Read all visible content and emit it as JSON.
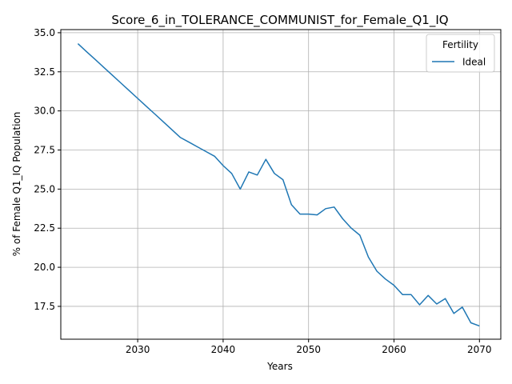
{
  "chart_data": {
    "type": "line",
    "title": "Score_6_in_TOLERANCE_COMMUNIST_for_Female_Q1_IQ",
    "xlabel": "Years",
    "ylabel": "% of Female Q1_IQ Population",
    "xlim": [
      2021,
      2072.5
    ],
    "ylim": [
      15.4,
      35.2
    ],
    "xticks": [
      2030,
      2040,
      2050,
      2060,
      2070
    ],
    "yticks": [
      17.5,
      20.0,
      22.5,
      25.0,
      27.5,
      30.0,
      32.5,
      35.0
    ],
    "xtick_labels": [
      "2030",
      "2040",
      "2050",
      "2060",
      "2070"
    ],
    "ytick_labels": [
      "17.5",
      "20.0",
      "22.5",
      "25.0",
      "27.5",
      "30.0",
      "32.5",
      "35.0"
    ],
    "grid": true,
    "legend": {
      "title": "Fertility",
      "placement": "top-right"
    },
    "series": [
      {
        "name": "Ideal",
        "color": "#1f77b4",
        "x": [
          2023,
          2024,
          2025,
          2026,
          2027,
          2028,
          2029,
          2030,
          2031,
          2032,
          2033,
          2034,
          2035,
          2036,
          2037,
          2038,
          2039,
          2040,
          2041,
          2042,
          2043,
          2044,
          2045,
          2046,
          2047,
          2048,
          2049,
          2050,
          2051,
          2052,
          2053,
          2054,
          2055,
          2056,
          2057,
          2058,
          2059,
          2060,
          2061,
          2062,
          2063,
          2064,
          2065,
          2066,
          2067,
          2068,
          2069,
          2070
        ],
        "y": [
          34.3,
          33.8,
          33.3,
          32.8,
          32.3,
          31.8,
          31.3,
          30.8,
          30.3,
          29.8,
          29.3,
          28.8,
          28.3,
          28.0,
          27.7,
          27.4,
          27.1,
          26.5,
          26.0,
          25.0,
          26.1,
          25.9,
          26.9,
          26.0,
          25.6,
          24.0,
          23.4,
          23.4,
          23.35,
          23.75,
          23.85,
          23.1,
          22.5,
          22.05,
          20.65,
          19.75,
          19.25,
          18.85,
          18.25,
          18.25,
          17.6,
          18.2,
          17.65,
          18.0,
          17.05,
          17.45,
          16.45,
          16.25
        ]
      }
    ]
  }
}
